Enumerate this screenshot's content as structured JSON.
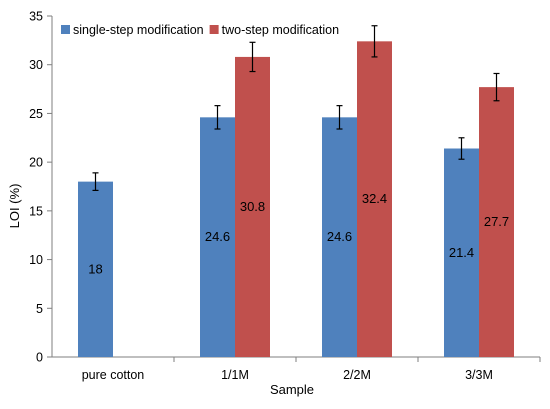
{
  "chart_data": {
    "type": "bar",
    "title": "",
    "xlabel": "Sample",
    "ylabel": "LOI (%)",
    "categories": [
      "pure cotton",
      "1/1M",
      "2/2M",
      "3/3M"
    ],
    "ylim": [
      0,
      35
    ],
    "yticks": [
      0,
      5,
      10,
      15,
      20,
      25,
      30,
      35
    ],
    "grid": false,
    "legend_position": "top-left",
    "series": [
      {
        "name": "single-step modification",
        "color": "#4f81bd",
        "values": [
          18,
          24.6,
          24.6,
          21.4
        ],
        "labels": [
          "18",
          "24.6",
          "24.6",
          "21.4"
        ],
        "errors": [
          0.9,
          1.2,
          1.2,
          1.1
        ]
      },
      {
        "name": "two-step modification",
        "color": "#c0504d",
        "values": [
          null,
          30.8,
          32.4,
          27.7
        ],
        "labels": [
          null,
          "30.8",
          "32.4",
          "27.7"
        ],
        "errors": [
          null,
          1.5,
          1.6,
          1.4
        ]
      }
    ]
  }
}
